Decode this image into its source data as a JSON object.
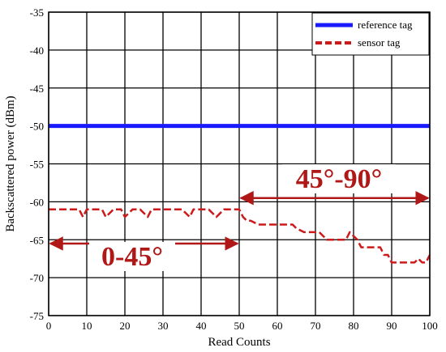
{
  "chart_data": {
    "type": "line",
    "title": "",
    "xlabel": "Read Counts",
    "ylabel": "Backscattered power (dBm)",
    "xlim": [
      0,
      100
    ],
    "ylim": [
      -75,
      -35
    ],
    "xticks": [
      "0",
      "10",
      "20",
      "30",
      "40",
      "50",
      "60",
      "70",
      "80",
      "90",
      "100"
    ],
    "yticks": [
      "-35",
      "-40",
      "-45",
      "-50",
      "-55",
      "-60",
      "-65",
      "-70",
      "-75"
    ],
    "grid": true,
    "legend_position": "top-right",
    "series": [
      {
        "name": "reference tag",
        "color": "#1a1aff",
        "style": "solid",
        "x": [
          0,
          100
        ],
        "y": [
          -50,
          -50
        ]
      },
      {
        "name": "sensor tag",
        "color": "#cc1a1a",
        "style": "dashed",
        "x": [
          0,
          8,
          9,
          10,
          12,
          14,
          15,
          17,
          19,
          20,
          22,
          24,
          26,
          27,
          30,
          35,
          37,
          38,
          40,
          42,
          44,
          46,
          48,
          50,
          51,
          52,
          53,
          55,
          60,
          64,
          65,
          67,
          69,
          71,
          73,
          74,
          76,
          78,
          79,
          80,
          81,
          82,
          83,
          84,
          85,
          87,
          88,
          89,
          90,
          92,
          94,
          96,
          97,
          98,
          99,
          100
        ],
        "y": [
          -61,
          -61,
          -62,
          -61,
          -61,
          -61,
          -62,
          -61,
          -61,
          -62,
          -61,
          -61,
          -62,
          -61,
          -61,
          -61,
          -62,
          -61,
          -61,
          -61,
          -62,
          -61,
          -61,
          -61,
          -62,
          -62.5,
          -62.5,
          -63,
          -63,
          -63,
          -63.5,
          -64,
          -64,
          -64,
          -65,
          -65,
          -65,
          -65,
          -64,
          -64.5,
          -65,
          -66,
          -66,
          -66,
          -66,
          -66,
          -67,
          -67,
          -68,
          -68,
          -68,
          -68,
          -67.5,
          -68,
          -68,
          -67
        ]
      }
    ],
    "annotations": [
      {
        "text": "0-45°",
        "x_from": 0,
        "x_to": 50,
        "y": -65.5
      },
      {
        "text": "45°-90°",
        "x_from": 50,
        "x_to": 100,
        "y": -59.5
      }
    ]
  }
}
